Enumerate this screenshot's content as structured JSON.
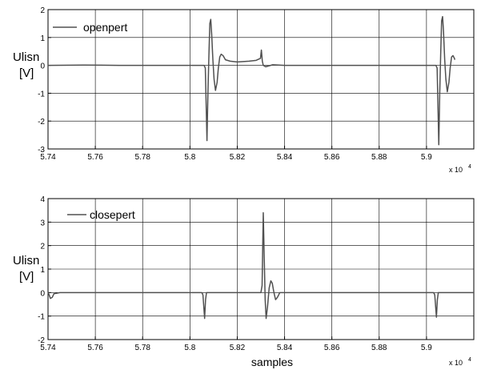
{
  "chart_data": [
    {
      "type": "line",
      "ylabel_line1": "Ulisn",
      "ylabel_line2": "[V]",
      "xlabel": "",
      "x_multiplier_base": "x 10",
      "x_multiplier_exp": "4",
      "xlim": [
        5.74,
        5.92
      ],
      "ylim": [
        -3,
        2
      ],
      "x_ticks": [
        5.74,
        5.76,
        5.78,
        5.8,
        5.82,
        5.84,
        5.86,
        5.88,
        5.9
      ],
      "x_tick_labels": [
        "5.74",
        "5.76",
        "5.78",
        "5.8",
        "5.82",
        "5.84",
        "5.86",
        "5.88",
        "5.9"
      ],
      "y_ticks": [
        -3,
        -2,
        -1,
        0,
        1,
        2
      ],
      "y_tick_labels": [
        "-3",
        "-2",
        "-1",
        "0",
        "1",
        "2"
      ],
      "grid": true,
      "legend_position": "top-left",
      "line_color": "#505050",
      "series": [
        {
          "name": "openpert",
          "points": [
            [
              5.74,
              0.0
            ],
            [
              5.755,
              0.01
            ],
            [
              5.77,
              0.0
            ],
            [
              5.785,
              0.0
            ],
            [
              5.8,
              0.0
            ],
            [
              5.806,
              0.0
            ],
            [
              5.8065,
              -0.1
            ],
            [
              5.8072,
              -2.7
            ],
            [
              5.8076,
              -1.0
            ],
            [
              5.808,
              0.3
            ],
            [
              5.8084,
              1.5
            ],
            [
              5.8088,
              1.65
            ],
            [
              5.8092,
              1.1
            ],
            [
              5.8097,
              0.2
            ],
            [
              5.8102,
              -0.5
            ],
            [
              5.8108,
              -0.9
            ],
            [
              5.8115,
              -0.6
            ],
            [
              5.812,
              -0.1
            ],
            [
              5.8126,
              0.3
            ],
            [
              5.8132,
              0.4
            ],
            [
              5.814,
              0.35
            ],
            [
              5.815,
              0.2
            ],
            [
              5.817,
              0.15
            ],
            [
              5.82,
              0.12
            ],
            [
              5.825,
              0.15
            ],
            [
              5.828,
              0.18
            ],
            [
              5.829,
              0.22
            ],
            [
              5.8298,
              0.25
            ],
            [
              5.8302,
              0.55
            ],
            [
              5.8306,
              0.15
            ],
            [
              5.831,
              0.0
            ],
            [
              5.832,
              -0.05
            ],
            [
              5.835,
              0.02
            ],
            [
              5.84,
              0.0
            ],
            [
              5.853,
              0.0
            ],
            [
              5.87,
              0.0
            ],
            [
              5.885,
              0.0
            ],
            [
              5.9,
              0.0
            ],
            [
              5.904,
              0.0
            ],
            [
              5.9045,
              -0.1
            ],
            [
              5.9052,
              -2.85
            ],
            [
              5.9056,
              -1.0
            ],
            [
              5.906,
              0.4
            ],
            [
              5.9064,
              1.6
            ],
            [
              5.9068,
              1.75
            ],
            [
              5.9072,
              1.2
            ],
            [
              5.9077,
              0.2
            ],
            [
              5.9082,
              -0.5
            ],
            [
              5.9088,
              -0.95
            ],
            [
              5.9095,
              -0.6
            ],
            [
              5.91,
              -0.1
            ],
            [
              5.9106,
              0.3
            ],
            [
              5.9112,
              0.35
            ],
            [
              5.9118,
              0.25
            ],
            [
              5.912,
              0.2
            ]
          ]
        }
      ]
    },
    {
      "type": "line",
      "ylabel_line1": "Ulisn",
      "ylabel_line2": "[V]",
      "xlabel": "samples",
      "x_multiplier_base": "x 10",
      "x_multiplier_exp": "4",
      "xlim": [
        5.74,
        5.92
      ],
      "ylim": [
        -2,
        4
      ],
      "x_ticks": [
        5.74,
        5.76,
        5.78,
        5.8,
        5.82,
        5.84,
        5.86,
        5.88,
        5.9
      ],
      "x_tick_labels": [
        "5.74",
        "5.76",
        "5.78",
        "5.8",
        "5.82",
        "5.84",
        "5.86",
        "5.88",
        "5.9"
      ],
      "y_ticks": [
        -2,
        -1,
        0,
        1,
        2,
        3,
        4
      ],
      "y_tick_labels": [
        "-2",
        "-1",
        "0",
        "1",
        "2",
        "3",
        "4"
      ],
      "grid": true,
      "legend_position": "top-left",
      "line_color": "#505050",
      "series": [
        {
          "name": "closepert",
          "points": [
            [
              5.74,
              0.0
            ],
            [
              5.7405,
              -0.1
            ],
            [
              5.741,
              -0.25
            ],
            [
              5.7418,
              -0.2
            ],
            [
              5.7425,
              -0.05
            ],
            [
              5.745,
              0.0
            ],
            [
              5.76,
              0.0
            ],
            [
              5.78,
              0.0
            ],
            [
              5.8,
              0.0
            ],
            [
              5.805,
              0.0
            ],
            [
              5.8055,
              -0.1
            ],
            [
              5.8062,
              -1.1
            ],
            [
              5.8066,
              -0.3
            ],
            [
              5.807,
              0.0
            ],
            [
              5.815,
              0.0
            ],
            [
              5.825,
              0.0
            ],
            [
              5.83,
              0.0
            ],
            [
              5.8305,
              0.3
            ],
            [
              5.831,
              3.4
            ],
            [
              5.8314,
              1.5
            ],
            [
              5.8318,
              -0.3
            ],
            [
              5.8322,
              -1.1
            ],
            [
              5.8328,
              -0.6
            ],
            [
              5.8335,
              0.2
            ],
            [
              5.8342,
              0.5
            ],
            [
              5.8348,
              0.4
            ],
            [
              5.8355,
              0.0
            ],
            [
              5.8362,
              -0.3
            ],
            [
              5.837,
              -0.2
            ],
            [
              5.838,
              0.0
            ],
            [
              5.85,
              0.0
            ],
            [
              5.87,
              0.0
            ],
            [
              5.89,
              0.0
            ],
            [
              5.903,
              0.0
            ],
            [
              5.9035,
              -0.1
            ],
            [
              5.9042,
              -1.05
            ],
            [
              5.9046,
              -0.3
            ],
            [
              5.905,
              0.0
            ],
            [
              5.912,
              0.0
            ],
            [
              5.92,
              0.0
            ]
          ]
        }
      ]
    }
  ]
}
